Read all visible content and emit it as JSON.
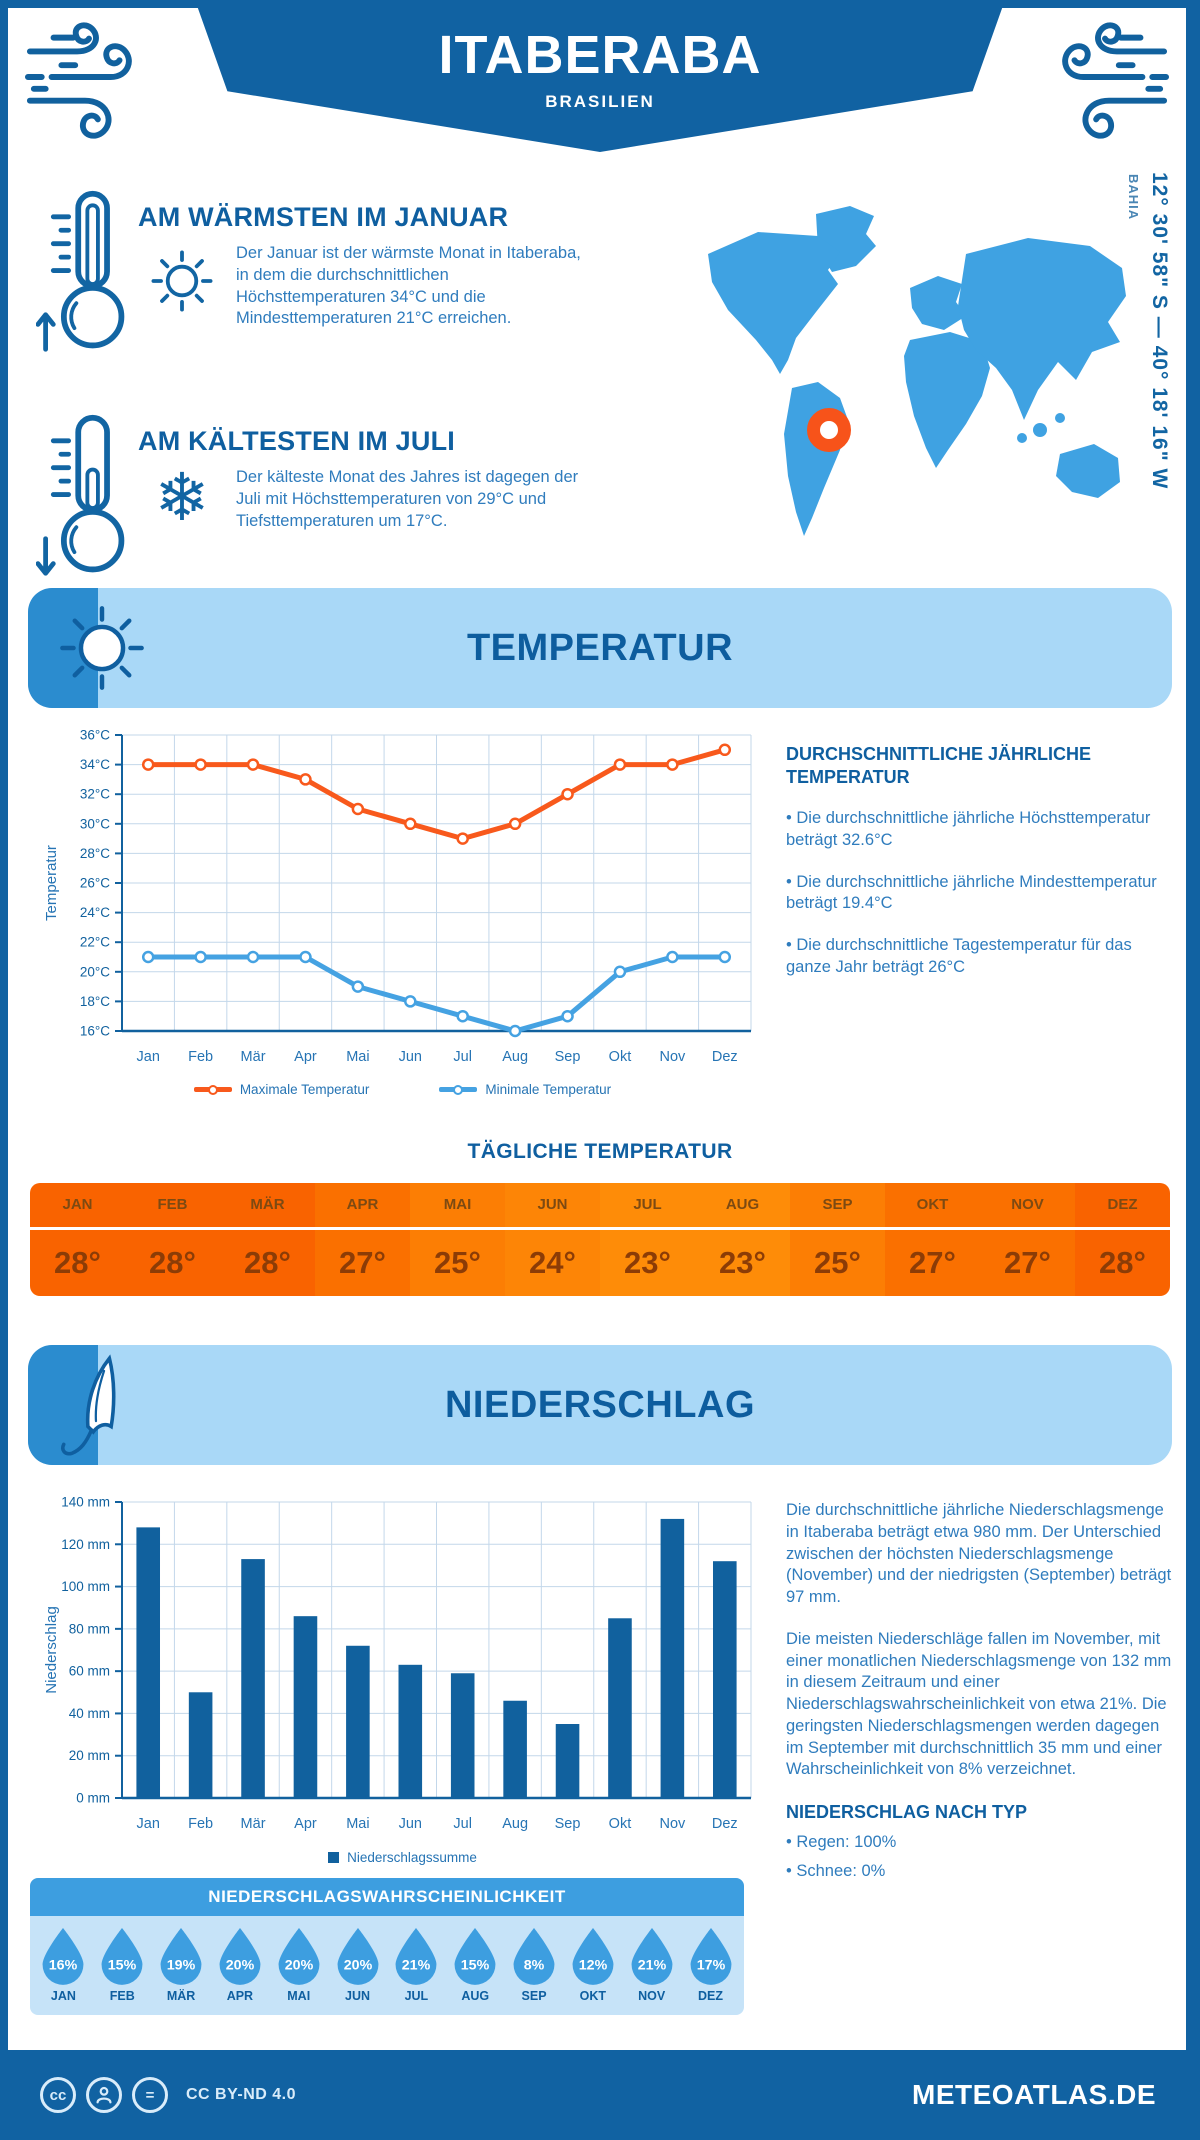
{
  "header": {
    "title": "ITABERABA",
    "subtitle": "BRASILIEN"
  },
  "location": {
    "region": "BAHIA",
    "coordinates": "12° 30' 58\" S — 40° 18' 16\" W"
  },
  "highlights": {
    "warmest": {
      "title": "AM WÄRMSTEN IM JANUAR",
      "text": "Der Januar ist der wärmste Monat in Itaberaba, in dem die durchschnittlichen Höchsttemperaturen 34°C und die Mindesttemperaturen 21°C erreichen."
    },
    "coldest": {
      "title": "AM KÄLTESTEN IM JULI",
      "text": "Der kälteste Monat des Jahres ist dagegen der Juli mit Höchsttemperaturen von 29°C und Tiefsttemperaturen um 17°C."
    }
  },
  "chart_data": [
    {
      "type": "line",
      "title": "TEMPERATUR",
      "x_categories": [
        "Jan",
        "Feb",
        "Mär",
        "Apr",
        "Mai",
        "Jun",
        "Jul",
        "Aug",
        "Sep",
        "Okt",
        "Nov",
        "Dez"
      ],
      "series": [
        {
          "name": "Maximale Temperatur",
          "color": "#f8591c",
          "values": [
            34,
            34,
            34,
            33,
            31,
            30,
            29,
            30,
            32,
            34,
            34,
            35
          ]
        },
        {
          "name": "Minimale Temperatur",
          "color": "#45a2e2",
          "values": [
            21,
            21,
            21,
            21,
            19,
            18,
            17,
            16,
            17,
            20,
            21,
            21
          ]
        }
      ],
      "xlabel": "",
      "ylabel": "Temperatur",
      "ylim": [
        16,
        36
      ],
      "ytick_step": 2,
      "ytick_suffix": "°C",
      "grid": true,
      "legend_position": "bottom"
    },
    {
      "type": "bar",
      "title": "NIEDERSCHLAG",
      "categories": [
        "Jan",
        "Feb",
        "Mär",
        "Apr",
        "Mai",
        "Jun",
        "Jul",
        "Aug",
        "Sep",
        "Okt",
        "Nov",
        "Dez"
      ],
      "values": [
        128,
        50,
        113,
        86,
        72,
        63,
        59,
        46,
        35,
        85,
        132,
        112
      ],
      "series_name": "Niederschlagssumme",
      "color": "#11619e",
      "xlabel": "",
      "ylabel": "Niederschlag",
      "ylim": [
        0,
        140
      ],
      "ytick_step": 20,
      "ytick_suffix": " mm",
      "grid": true,
      "legend_position": "bottom"
    }
  ],
  "temperature_section": {
    "banner": "TEMPERATUR",
    "summary_title": "DURCHSCHNITTLICHE JÄHRLICHE TEMPERATUR",
    "summary_bullets": [
      "• Die durchschnittliche jährliche Höchsttemperatur beträgt 32.6°C",
      "• Die durchschnittliche jährliche Mindesttemperatur beträgt 19.4°C",
      "• Die durchschnittliche Tagestemperatur für das ganze Jahr beträgt 26°C"
    ],
    "daily": {
      "title": "TÄGLICHE TEMPERATUR",
      "months": [
        "JAN",
        "FEB",
        "MÄR",
        "APR",
        "MAI",
        "JUN",
        "JUL",
        "AUG",
        "SEP",
        "OKT",
        "NOV",
        "DEZ"
      ],
      "values": [
        "28°",
        "28°",
        "28°",
        "27°",
        "25°",
        "24°",
        "23°",
        "23°",
        "25°",
        "27°",
        "27°",
        "28°"
      ],
      "cell_colors": [
        "#f96300",
        "#f96300",
        "#f96300",
        "#fa7000",
        "#fc7e04",
        "#fd8506",
        "#fe8c08",
        "#fe8c08",
        "#fc7e04",
        "#fa7000",
        "#fa7000",
        "#f96300"
      ]
    }
  },
  "precipitation_section": {
    "banner": "NIEDERSCHLAG",
    "legend": "Niederschlagssumme",
    "paragraphs": [
      "Die durchschnittliche jährliche Niederschlagsmenge in Itaberaba beträgt etwa 980 mm. Der Unterschied zwischen der höchsten Niederschlagsmenge (November) und der niedrigsten (September) beträgt 97 mm.",
      "Die meisten Niederschläge fallen im November, mit einer monatlichen Niederschlagsmenge von 132 mm in diesem Zeitraum und einer Niederschlagswahrscheinlichkeit von etwa 21%. Die geringsten Niederschlagsmengen werden dagegen im September mit durchschnittlich 35 mm und einer Wahrscheinlichkeit von 8% verzeichnet."
    ],
    "type_title": "NIEDERSCHLAG NACH TYP",
    "type_bullets": [
      "• Regen: 100%",
      "• Schnee: 0%"
    ],
    "probability": {
      "title": "NIEDERSCHLAGSWAHRSCHEINLICHKEIT",
      "months": [
        "JAN",
        "FEB",
        "MÄR",
        "APR",
        "MAI",
        "JUN",
        "JUL",
        "AUG",
        "SEP",
        "OKT",
        "NOV",
        "DEZ"
      ],
      "values": [
        "16%",
        "15%",
        "19%",
        "20%",
        "20%",
        "20%",
        "21%",
        "15%",
        "8%",
        "12%",
        "21%",
        "17%"
      ]
    }
  },
  "icons": {
    "snowflake_glyph": "❄"
  },
  "colors": {
    "primary": "#1162a2",
    "banner_light": "#a9d8f7",
    "banner_tab": "#2b8ccf",
    "medium_blue": "#3d9ee0",
    "map_blue": "#3fa2e2",
    "marker_ring": "#f7531a",
    "max_line": "#f8591c",
    "min_line": "#45a2e2",
    "bar": "#11619e",
    "body_text": "#2f7cbd"
  },
  "footer": {
    "license": "CC BY-ND 4.0",
    "site": "METEOATLAS.DE"
  }
}
